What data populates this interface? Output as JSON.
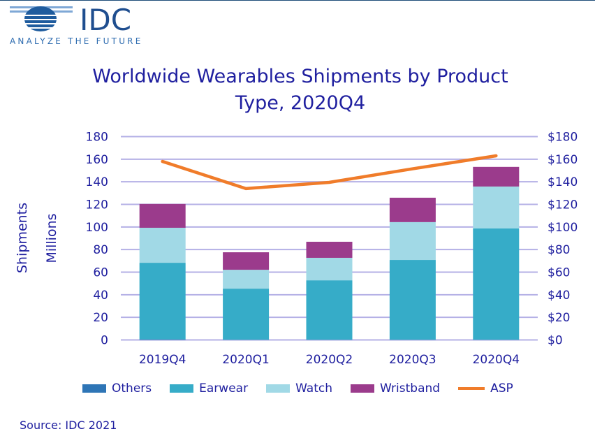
{
  "logo": {
    "brand": "IDC",
    "tagline": "ANALYZE THE FUTURE"
  },
  "source": "Source: IDC 2021",
  "chart_data": {
    "type": "bar",
    "stacked": true,
    "title": "Worldwide Wearables Shipments by Product Type, 2020Q4",
    "title_lines": [
      "Worldwide Wearables Shipments by Product",
      "Type, 2020Q4"
    ],
    "ylabel_lines": [
      "Shipments",
      "Millions"
    ],
    "categories": [
      "2019Q4",
      "2020Q1",
      "2020Q2",
      "2020Q3",
      "2020Q4"
    ],
    "ylim": [
      0,
      180
    ],
    "yticks": [
      "0",
      "20",
      "40",
      "60",
      "80",
      "100",
      "120",
      "140",
      "160",
      "180"
    ],
    "y2lim": [
      0,
      180
    ],
    "y2ticks": [
      "$0",
      "$20",
      "$40",
      "$60",
      "$80",
      "$100",
      "$120",
      "$140",
      "$160",
      "$180"
    ],
    "grid": true,
    "legend_position": "bottom",
    "series": [
      {
        "name": "Others",
        "color": "#2e75b6",
        "values": [
          0.5,
          0.2,
          0.2,
          0.2,
          0.2
        ]
      },
      {
        "name": "Earwear",
        "color": "#36acc8",
        "values": [
          67.8,
          45.2,
          52.6,
          70.6,
          98.5
        ]
      },
      {
        "name": "Watch",
        "color": "#a1d9e6",
        "values": [
          31.0,
          16.7,
          19.9,
          33.5,
          37.1
        ]
      },
      {
        "name": "Wristband",
        "color": "#9b3b8c",
        "values": [
          21.1,
          15.5,
          14.2,
          21.6,
          17.4
        ]
      }
    ],
    "line_series": {
      "name": "ASP",
      "color": "#f07c2a",
      "axis": "right",
      "values": [
        158,
        134,
        139.5,
        151.5,
        163
      ]
    }
  }
}
